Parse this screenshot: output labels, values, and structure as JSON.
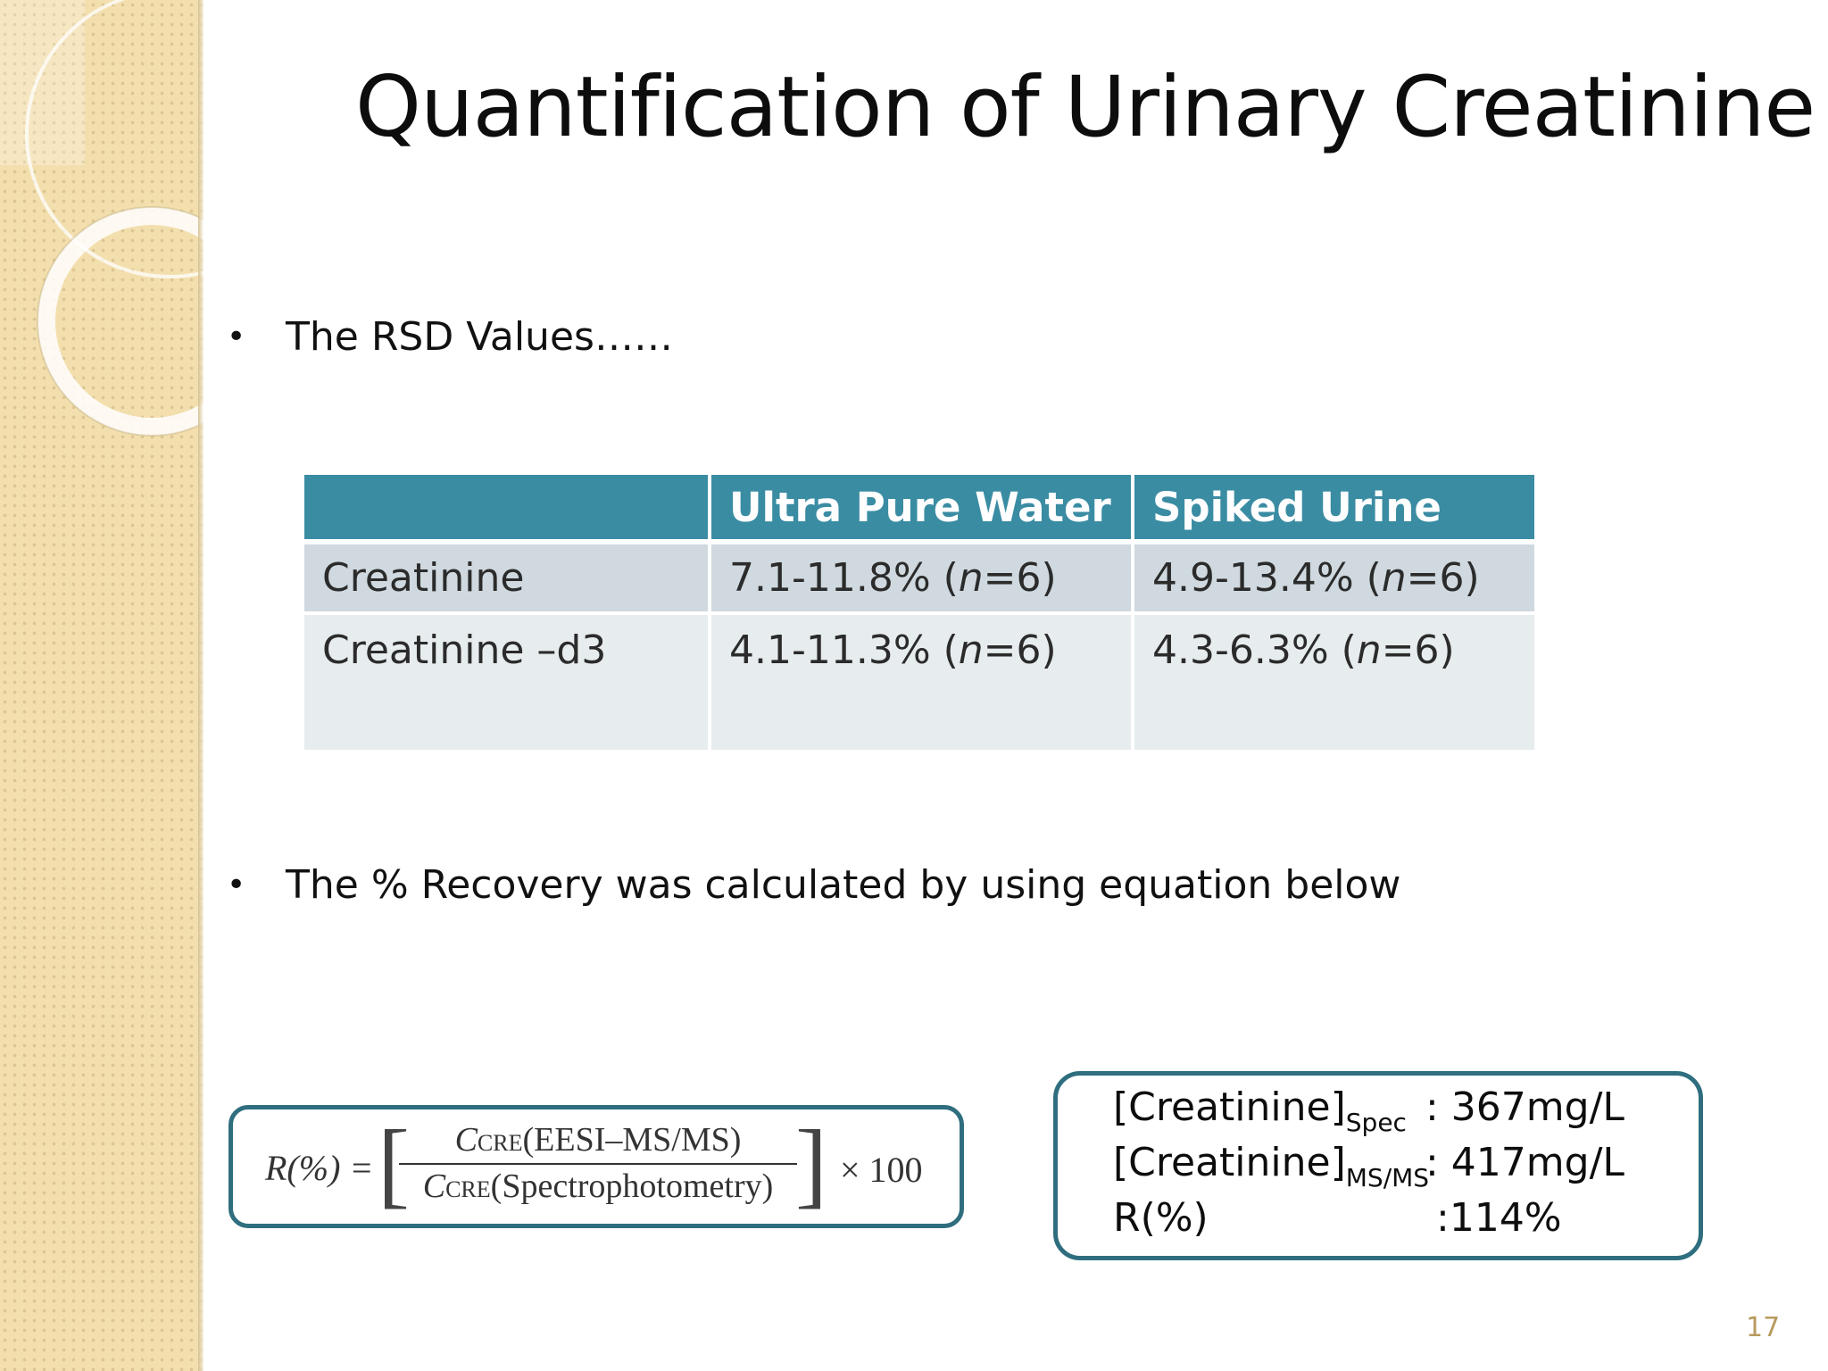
{
  "slide": {
    "title": "Quantification of Urinary Creatinine",
    "page_number": "17",
    "colors": {
      "table_header": "#3a8ca3",
      "box_border": "#2f6e7e",
      "side_strip": "#f3dfae"
    }
  },
  "bullets": [
    {
      "marker": "•",
      "text": "The RSD Values……"
    },
    {
      "marker": "•",
      "text": "The % Recovery was calculated by using equation below"
    }
  ],
  "rsd_table": {
    "headers": [
      "",
      "Ultra Pure Water",
      "Spiked Urine"
    ],
    "rows": [
      {
        "label": "Creatinine",
        "water": "7.1-11.8% (n=6)",
        "urine": "4.9-13.4% (n=6)"
      },
      {
        "label": "Creatinine –d3",
        "water": "4.1-11.3% (n=6)",
        "urine": "4.3-6.3% (n=6)"
      }
    ]
  },
  "equation": {
    "lhs": "R(%) =",
    "numerator_var": "C",
    "numerator_sub": "CRE",
    "numerator_method": "(EESI–MS/MS)",
    "denominator_var": "C",
    "denominator_sub": "CRE",
    "denominator_method": "(Spectrophotometry)",
    "multiplier": "× 100"
  },
  "results": [
    {
      "label": "[Creatinine]",
      "subscript": "Spec",
      "value": ": 367mg/L"
    },
    {
      "label": "[Creatinine]",
      "subscript": "MS/MS",
      "value": ": 417mg/L"
    },
    {
      "label": "R(%)",
      "subscript": "",
      "value": ":114%"
    }
  ]
}
